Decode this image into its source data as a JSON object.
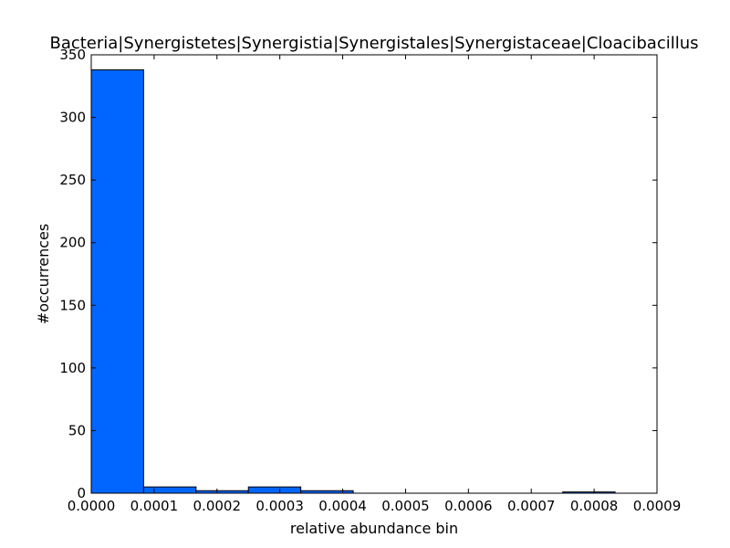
{
  "chart_data": {
    "type": "bar",
    "title": "Bacteria|Synergistetes|Synergistia|Synergistales|Synergistaceae|Cloacibacillus",
    "xlabel": "relative abundance bin",
    "ylabel": "#occurrences",
    "xlim": [
      0,
      0.0009
    ],
    "ylim": [
      0,
      350
    ],
    "x_ticks": [
      "0.0000",
      "0.0001",
      "0.0002",
      "0.0003",
      "0.0004",
      "0.0005",
      "0.0006",
      "0.0007",
      "0.0008",
      "0.0009"
    ],
    "y_ticks": [
      "0",
      "50",
      "100",
      "150",
      "200",
      "250",
      "300",
      "350"
    ],
    "bar_color": "#0066ff",
    "bins": [
      {
        "start": 0.0,
        "end": 8.33e-05,
        "count": 338
      },
      {
        "start": 8.33e-05,
        "end": 0.0001667,
        "count": 5
      },
      {
        "start": 0.0001667,
        "end": 0.00025,
        "count": 2
      },
      {
        "start": 0.00025,
        "end": 0.0003333,
        "count": 5
      },
      {
        "start": 0.0003333,
        "end": 0.0004167,
        "count": 2
      },
      {
        "start": 0.0004167,
        "end": 0.0005,
        "count": 0
      },
      {
        "start": 0.0005,
        "end": 0.0005833,
        "count": 0
      },
      {
        "start": 0.0005833,
        "end": 0.0006667,
        "count": 0
      },
      {
        "start": 0.0006667,
        "end": 0.00075,
        "count": 0
      },
      {
        "start": 0.00075,
        "end": 0.0008333,
        "count": 1
      }
    ]
  }
}
